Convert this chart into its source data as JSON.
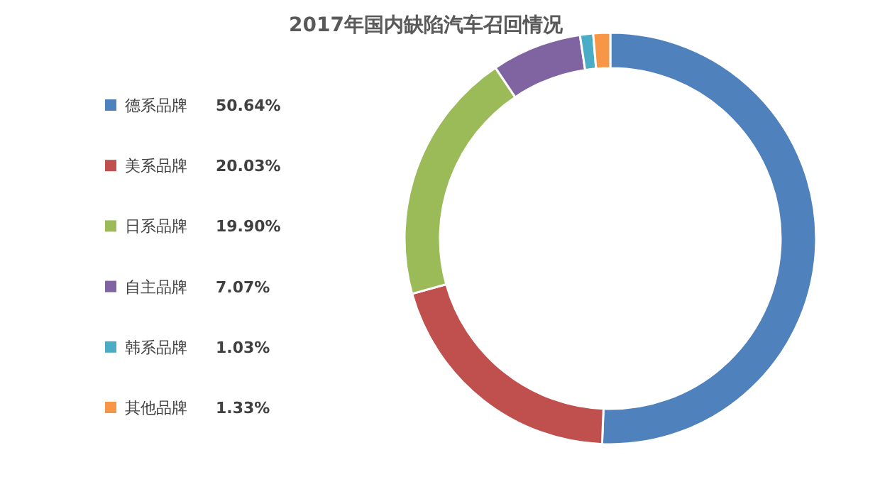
{
  "chart_data": {
    "type": "donut",
    "title": "2017年国内缺陷汽车召回情况",
    "categories": [
      "德系品牌",
      "美系品牌",
      "日系品牌",
      "自主品牌",
      "韩系品牌",
      "其他品牌"
    ],
    "values": [
      50.64,
      20.03,
      19.9,
      7.07,
      1.03,
      1.33
    ],
    "colors": [
      "#4f81bd",
      "#c0504d",
      "#9bbb59",
      "#8064a2",
      "#4bacc6",
      "#f79646"
    ],
    "value_labels": [
      "50.64%",
      "20.03%",
      "19.90%",
      "7.07%",
      "1.03%",
      "1.33%"
    ],
    "legend": "left"
  }
}
